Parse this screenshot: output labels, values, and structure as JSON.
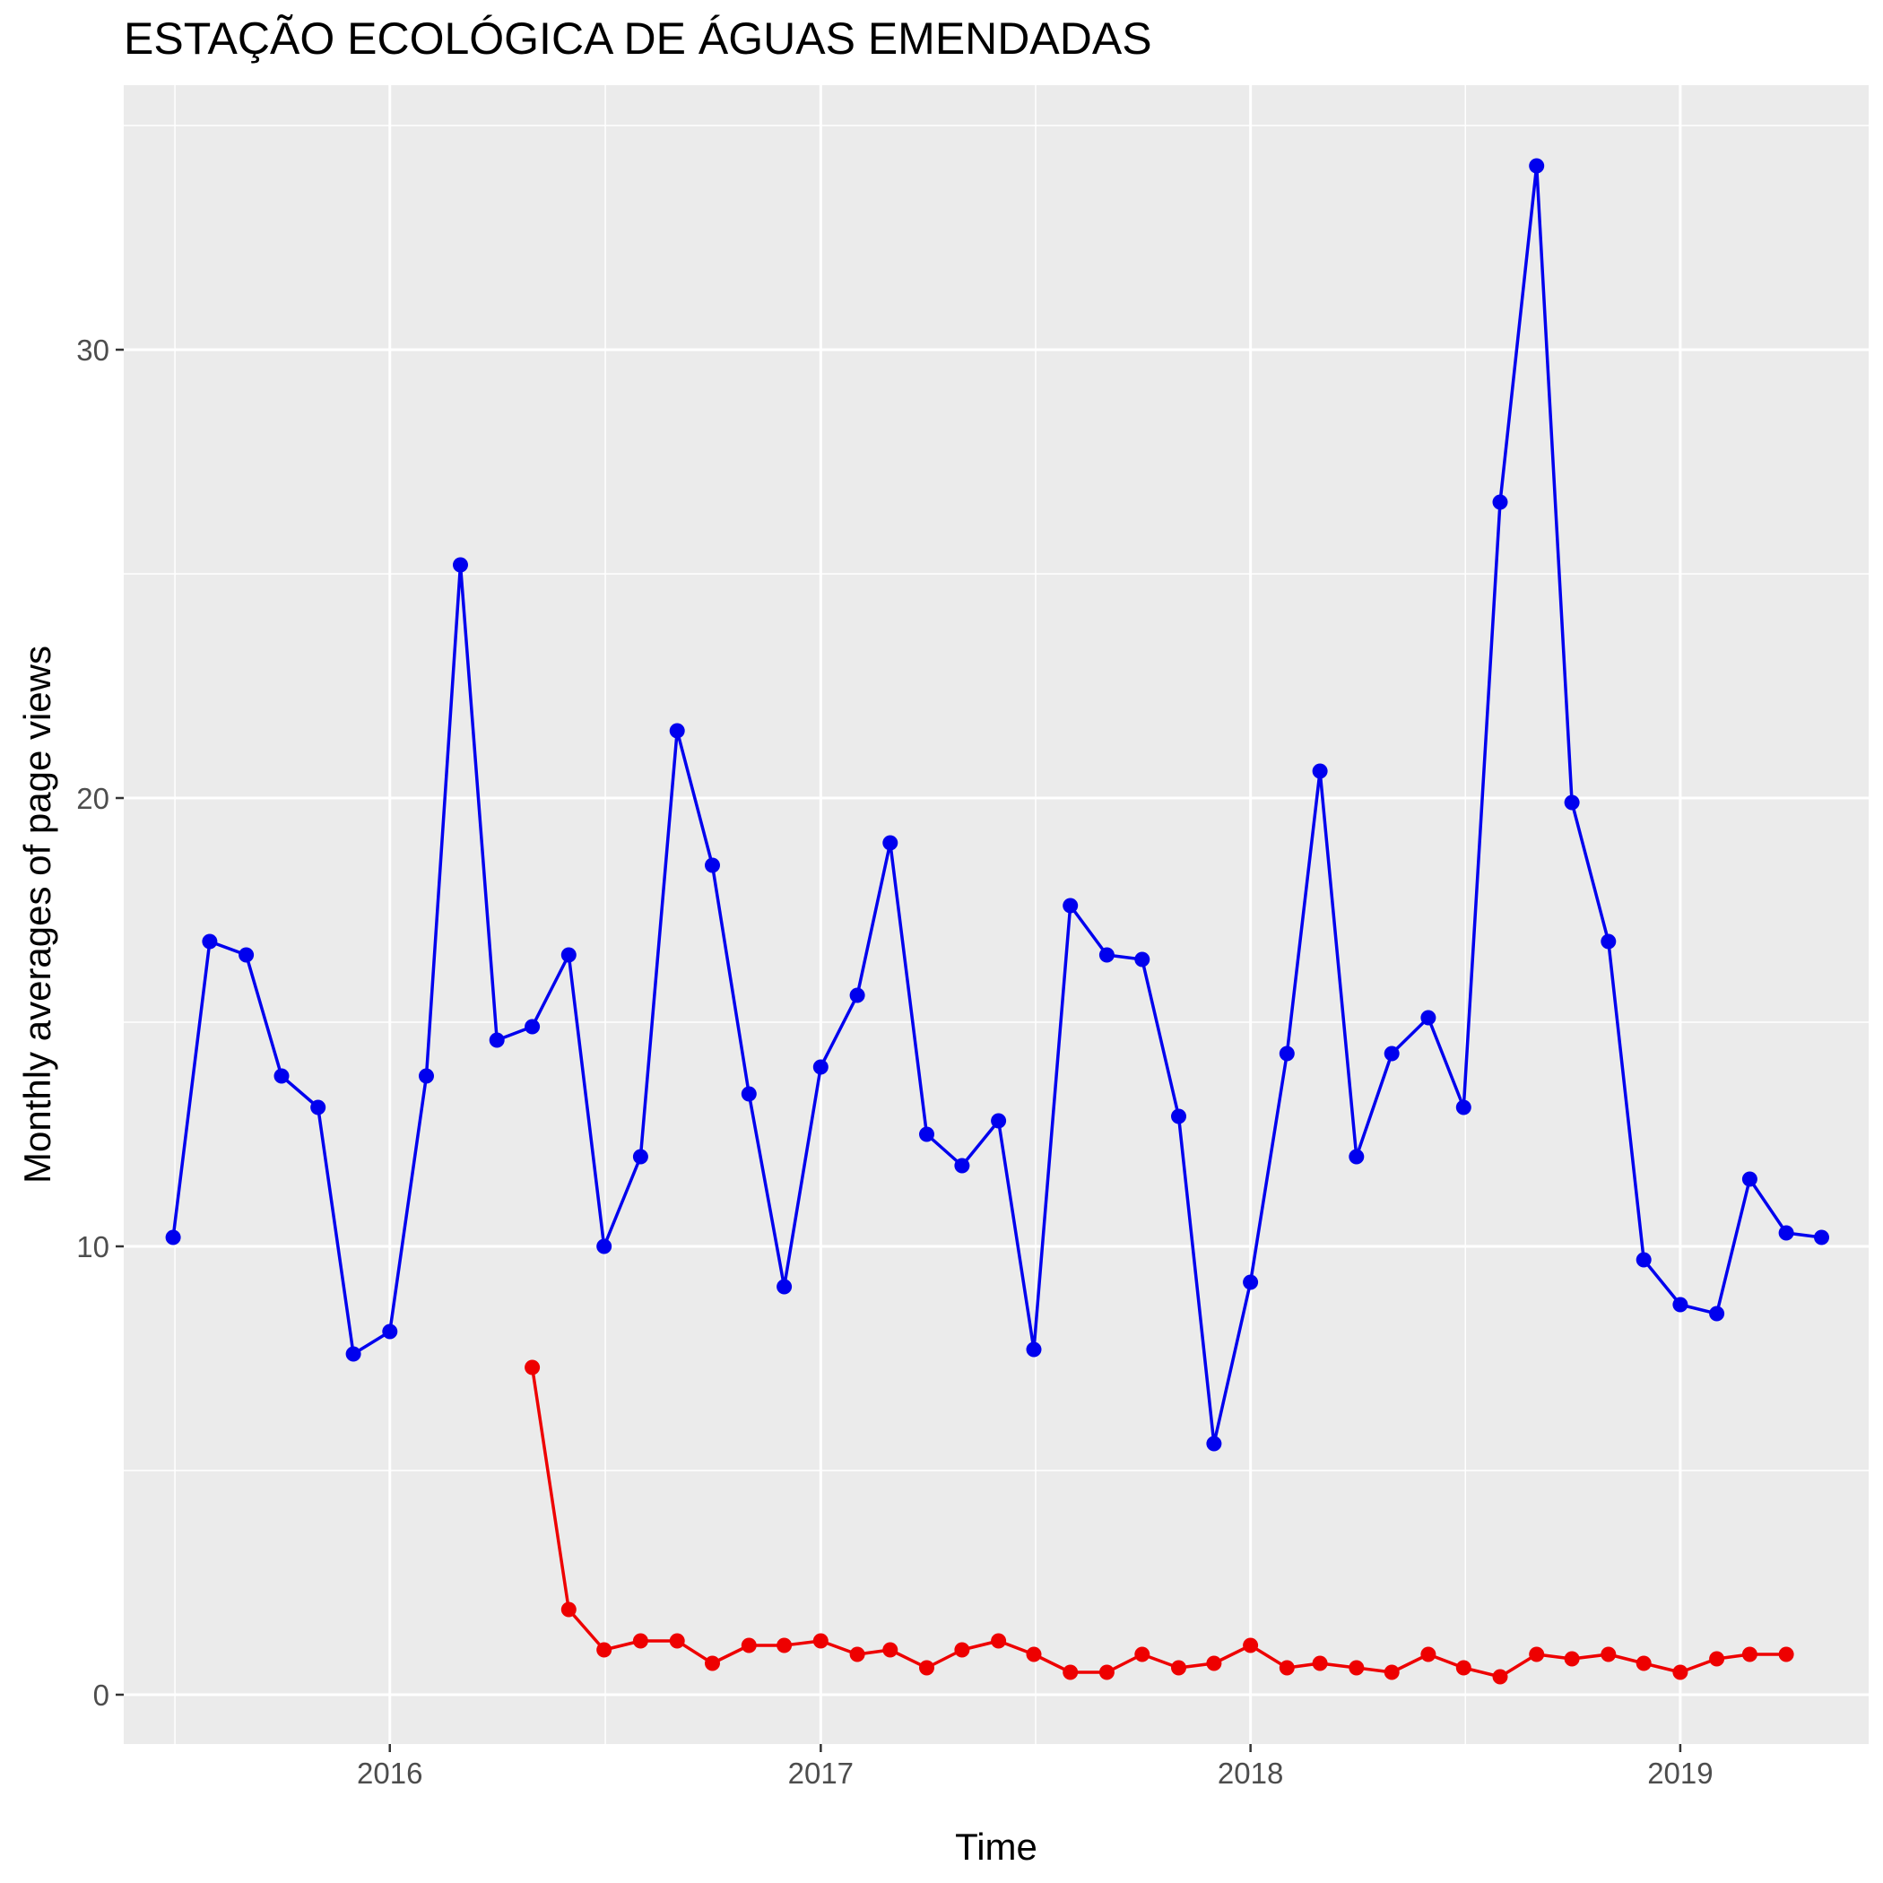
{
  "chart_data": {
    "type": "line",
    "title": "ESTAÇÃO ECOLÓGICA DE ÁGUAS EMENDADAS",
    "xlabel": "Time",
    "ylabel": "Monthly averages of page views",
    "x_ticks": [
      "2016",
      "2017",
      "2018",
      "2019"
    ],
    "y_ticks": [
      0,
      10,
      20,
      30
    ],
    "xlim": [
      "2015-05-20",
      "2019-06-10"
    ],
    "ylim": [
      -1.1,
      35.9
    ],
    "grid": true,
    "legend": "none",
    "series": [
      {
        "color": "#0000ee",
        "x": [
          "2015-07-01",
          "2015-08-01",
          "2015-09-01",
          "2015-10-01",
          "2015-11-01",
          "2015-12-01",
          "2016-01-01",
          "2016-02-01",
          "2016-03-01",
          "2016-04-01",
          "2016-05-01",
          "2016-06-01",
          "2016-07-01",
          "2016-08-01",
          "2016-09-01",
          "2016-10-01",
          "2016-11-01",
          "2016-12-01",
          "2017-01-01",
          "2017-02-01",
          "2017-03-01",
          "2017-04-01",
          "2017-05-01",
          "2017-06-01",
          "2017-07-01",
          "2017-08-01",
          "2017-09-01",
          "2017-10-01",
          "2017-11-01",
          "2017-12-01",
          "2018-01-01",
          "2018-02-01",
          "2018-03-01",
          "2018-04-01",
          "2018-05-01",
          "2018-06-01",
          "2018-07-01",
          "2018-08-01",
          "2018-09-01",
          "2018-10-01",
          "2018-11-01",
          "2018-12-01",
          "2019-01-01",
          "2019-02-01",
          "2019-03-01",
          "2019-04-01",
          "2019-05-01"
        ],
        "values": [
          10.2,
          16.8,
          16.5,
          13.8,
          13.1,
          7.6,
          8.1,
          13.8,
          25.2,
          14.6,
          14.9,
          16.5,
          10.0,
          12.0,
          21.5,
          18.5,
          13.4,
          9.1,
          14.0,
          15.6,
          19.0,
          12.5,
          11.8,
          12.8,
          7.7,
          17.6,
          16.5,
          16.4,
          12.9,
          5.6,
          9.2,
          14.3,
          20.6,
          12.0,
          14.3,
          15.1,
          13.1,
          26.6,
          34.1,
          19.9,
          16.8,
          9.7,
          8.7,
          8.5,
          11.5,
          10.3,
          10.2
        ]
      },
      {
        "color": "#ee0000",
        "x": [
          "2016-05-01",
          "2016-06-01",
          "2016-07-01",
          "2016-08-01",
          "2016-09-01",
          "2016-10-01",
          "2016-11-01",
          "2016-12-01",
          "2017-01-01",
          "2017-02-01",
          "2017-03-01",
          "2017-04-01",
          "2017-05-01",
          "2017-06-01",
          "2017-07-01",
          "2017-08-01",
          "2017-09-01",
          "2017-10-01",
          "2017-11-01",
          "2017-12-01",
          "2018-01-01",
          "2018-02-01",
          "2018-03-01",
          "2018-04-01",
          "2018-05-01",
          "2018-06-01",
          "2018-07-01",
          "2018-08-01",
          "2018-09-01",
          "2018-10-01",
          "2018-11-01",
          "2018-12-01",
          "2019-01-01",
          "2019-02-01",
          "2019-03-01",
          "2019-04-01"
        ],
        "values": [
          7.3,
          1.9,
          1.0,
          1.2,
          1.2,
          0.7,
          1.1,
          1.1,
          1.2,
          0.9,
          1.0,
          0.6,
          1.0,
          1.2,
          0.9,
          0.5,
          0.5,
          0.9,
          0.6,
          0.7,
          1.1,
          0.6,
          0.7,
          0.6,
          0.5,
          0.9,
          0.6,
          0.4,
          0.9,
          0.8,
          0.9,
          0.7,
          0.5,
          0.8,
          0.9,
          0.9
        ]
      }
    ]
  }
}
